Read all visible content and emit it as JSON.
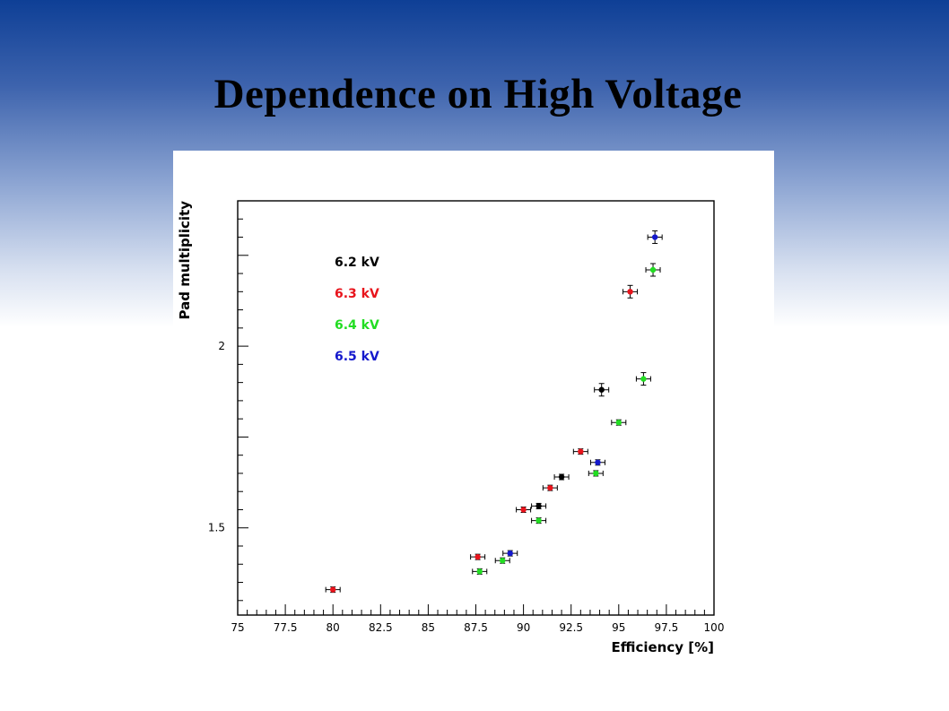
{
  "slide": {
    "title": "Dependence on High Voltage"
  },
  "chart_data": {
    "type": "scatter",
    "title": "",
    "xlabel": "Efficiency [%]",
    "ylabel": "Pad multiplicity",
    "xlim": [
      75,
      100
    ],
    "ylim": [
      1.26,
      2.4
    ],
    "xticks": [
      "75",
      "77.5",
      "80",
      "82.5",
      "85",
      "87.5",
      "90",
      "92.5",
      "95",
      "97.5",
      "100"
    ],
    "yticks_labeled": [
      "1.5",
      "2"
    ],
    "grid": false,
    "legend_position": "top-left",
    "error_bars": true,
    "series": [
      {
        "name": "6.2 kV",
        "color": "#000000",
        "points": [
          {
            "x": 90.8,
            "y": 1.56
          },
          {
            "x": 92.0,
            "y": 1.64
          },
          {
            "x": 94.1,
            "y": 1.88
          }
        ]
      },
      {
        "name": "6.3 kV",
        "color": "#e8141c",
        "points": [
          {
            "x": 80.0,
            "y": 1.33
          },
          {
            "x": 87.6,
            "y": 1.42
          },
          {
            "x": 90.0,
            "y": 1.55
          },
          {
            "x": 91.4,
            "y": 1.61
          },
          {
            "x": 93.0,
            "y": 1.71
          },
          {
            "x": 95.6,
            "y": 2.15
          }
        ]
      },
      {
        "name": "6.4 kV",
        "color": "#22dd22",
        "points": [
          {
            "x": 87.7,
            "y": 1.38
          },
          {
            "x": 88.9,
            "y": 1.41
          },
          {
            "x": 90.8,
            "y": 1.52
          },
          {
            "x": 93.8,
            "y": 1.65
          },
          {
            "x": 95.0,
            "y": 1.79
          },
          {
            "x": 96.3,
            "y": 1.91
          },
          {
            "x": 96.8,
            "y": 2.21
          }
        ]
      },
      {
        "name": "6.5 kV",
        "color": "#1418cc",
        "points": [
          {
            "x": 89.3,
            "y": 1.43
          },
          {
            "x": 93.9,
            "y": 1.68
          },
          {
            "x": 96.9,
            "y": 2.3
          }
        ]
      }
    ]
  }
}
